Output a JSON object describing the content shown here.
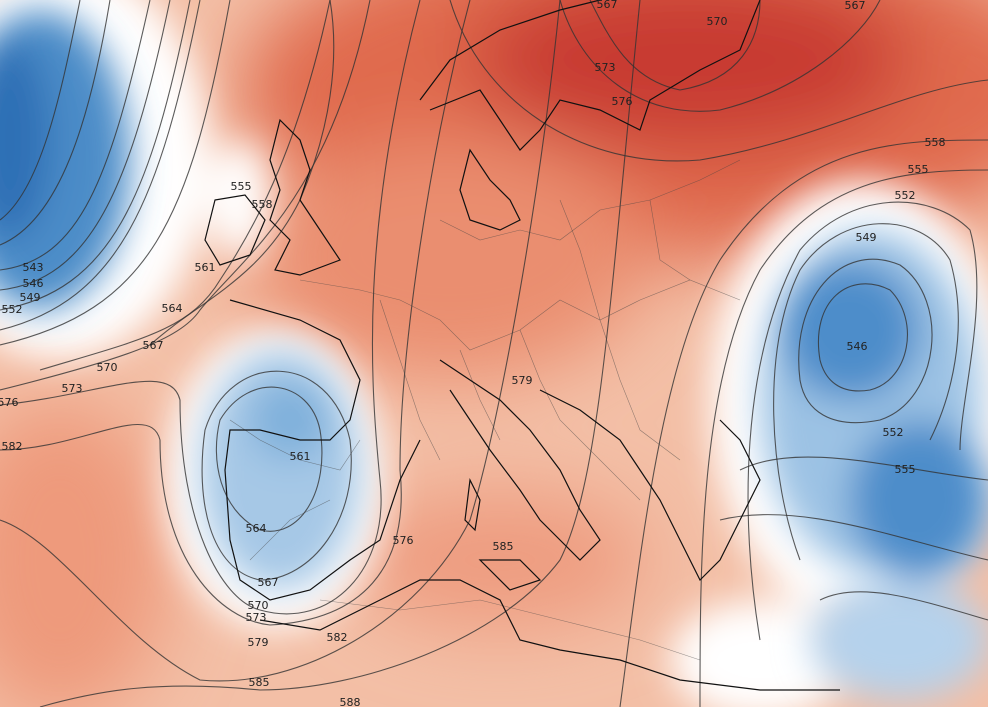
{
  "contour_labels": [
    "567",
    "570",
    "567",
    "573",
    "576",
    "558",
    "555",
    "552",
    "549",
    "546",
    "552",
    "555",
    "555",
    "558",
    "561",
    "543",
    "546",
    "549",
    "552",
    "564",
    "567",
    "570",
    "573",
    "576",
    "582",
    "579",
    "561",
    "564",
    "567",
    "570",
    "573",
    "579",
    "576",
    "585",
    "582",
    "585",
    "588"
  ]
}
